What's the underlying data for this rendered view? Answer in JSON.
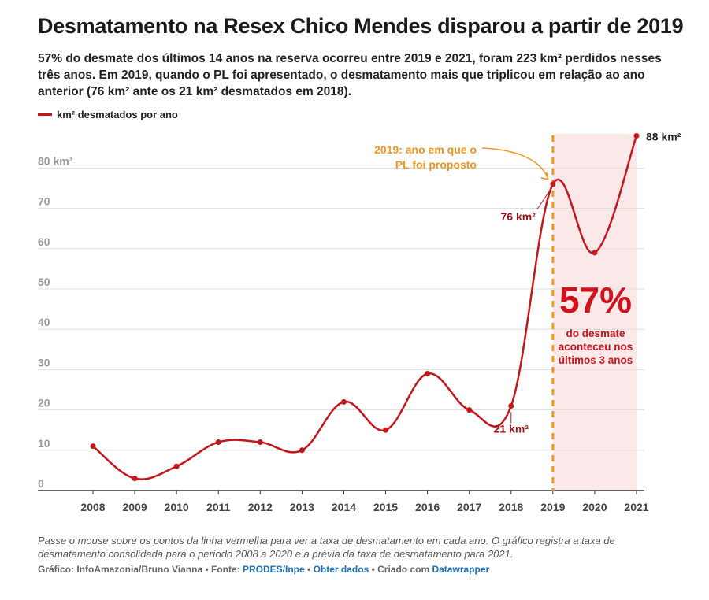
{
  "header": {
    "title": "Desmatamento na Resex Chico Mendes disparou a partir de 2019",
    "subtitle": "57% do desmate dos últimos 14 anos na reserva ocorreu entre 2019 e 2021, foram 223 km² perdidos nesses três anos. Em 2019, quando o PL foi apresentado, o desmatamento mais que triplicou em relação ao ano anterior (76 km² ante os 21 km² desmatados em 2018)."
  },
  "legend": {
    "label": "km² desmatados por ano"
  },
  "colors": {
    "line": "#c4161c",
    "highlight_band": "#fbe9ea",
    "annotation": "#f0961e",
    "grid": "#dddddd",
    "axis": "#333333",
    "tick_text": "#999999",
    "link": "#1b6fb5"
  },
  "chart_data": {
    "type": "line",
    "x": [
      2008,
      2009,
      2010,
      2011,
      2012,
      2013,
      2014,
      2015,
      2016,
      2017,
      2018,
      2019,
      2020,
      2021
    ],
    "series": [
      {
        "name": "km² desmatados por ano",
        "values": [
          11,
          3,
          6,
          12,
          12,
          10,
          22,
          15,
          29,
          20,
          21,
          76,
          59,
          88
        ]
      }
    ],
    "ylim": [
      0,
      88
    ],
    "y_ticks": [
      0,
      10,
      20,
      30,
      40,
      50,
      60,
      70,
      80
    ],
    "y_tick_labels": [
      "0",
      "10",
      "20",
      "30",
      "40",
      "50",
      "60",
      "70",
      "80 km²"
    ],
    "grid": true,
    "legend_position": "top-left",
    "highlight_range": [
      2019,
      2021
    ],
    "marker_line_x": 2019,
    "point_labels": [
      {
        "x": 2018,
        "text": "21 km²"
      },
      {
        "x": 2019,
        "text": "76 km²"
      },
      {
        "x": 2021,
        "text": "88 km²"
      }
    ]
  },
  "annotations": {
    "year_2019": "2019: ano em que o PL foi proposto",
    "big_percent": "57%",
    "big_percent_text": "do desmate aconteceu nos últimos 3 anos"
  },
  "footer": {
    "notes": "Passe o mouse sobre os pontos da linha vermelha para ver a taxa de desmatamento em cada ano. O gráfico registra a taxa de desmatamento consolidada para o período 2008 a 2020 e a prévia da taxa de desmatamento para 2021.",
    "credit_prefix": "Gráfico: InfoAmazonia/Bruno Vianna • Fonte: ",
    "source_link": "PRODES/Inpe",
    "sep1": " • ",
    "data_link": "Obter dados",
    "sep2": " • Criado com ",
    "tool_link": "Datawrapper"
  }
}
